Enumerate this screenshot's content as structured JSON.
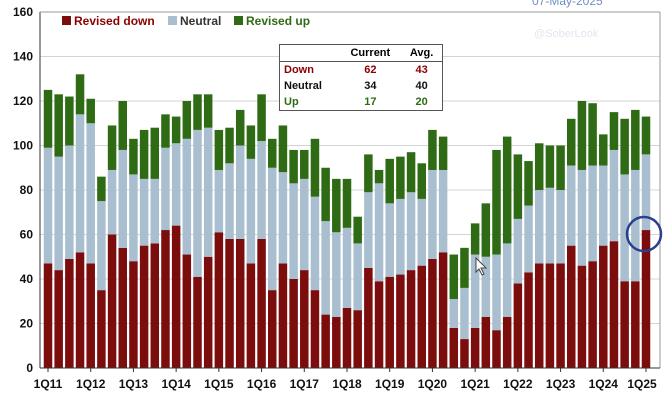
{
  "date_stamp": "07-May-2025",
  "watermark": "@SoberLook",
  "colors": {
    "down": "#7b0d0d",
    "neutral": "#a9bfd0",
    "up": "#2f6b14",
    "highlight_circle": "#2a3f8f"
  },
  "table": {
    "headers": [
      "",
      "Current",
      "Avg."
    ],
    "rows": [
      {
        "label": "Down",
        "current": "62",
        "avg": "43",
        "color": "#8b0000"
      },
      {
        "label": "Neutral",
        "current": "34",
        "avg": "40",
        "color": "#111111"
      },
      {
        "label": "Up",
        "current": "17",
        "avg": "20",
        "color": "#2f6b14"
      }
    ]
  },
  "chart_data": {
    "type": "bar",
    "stacked": true,
    "ylim": [
      0,
      160
    ],
    "yticks": [
      0,
      20,
      40,
      60,
      80,
      100,
      120,
      140,
      160
    ],
    "grid": true,
    "legend_placement": "top-left",
    "xtick_labels": [
      "1Q11",
      "1Q12",
      "1Q13",
      "1Q14",
      "1Q15",
      "1Q16",
      "1Q17",
      "1Q18",
      "1Q19",
      "1Q20",
      "1Q21",
      "1Q22",
      "1Q23",
      "1Q24",
      "1Q25"
    ],
    "categories": [
      "1Q11",
      "2Q11",
      "3Q11",
      "4Q11",
      "1Q12",
      "2Q12",
      "3Q12",
      "4Q12",
      "1Q13",
      "2Q13",
      "3Q13",
      "4Q13",
      "1Q14",
      "2Q14",
      "3Q14",
      "4Q14",
      "1Q15",
      "2Q15",
      "3Q15",
      "4Q15",
      "1Q16",
      "2Q16",
      "3Q16",
      "4Q16",
      "1Q17",
      "2Q17",
      "3Q17",
      "4Q17",
      "1Q18",
      "2Q18",
      "3Q18",
      "4Q18",
      "1Q19",
      "2Q19",
      "3Q19",
      "4Q19",
      "1Q20",
      "2Q20",
      "3Q20",
      "4Q20",
      "1Q21",
      "2Q21",
      "3Q21",
      "4Q21",
      "1Q22",
      "2Q22",
      "3Q22",
      "4Q22",
      "1Q23",
      "2Q23",
      "3Q23",
      "4Q23",
      "1Q24",
      "2Q24",
      "3Q24",
      "4Q24",
      "1Q25"
    ],
    "series": [
      {
        "name": "Revised down",
        "key": "down",
        "values": [
          47,
          44,
          49,
          52,
          47,
          35,
          60,
          54,
          48,
          55,
          56,
          62,
          64,
          51,
          41,
          50,
          61,
          58,
          58,
          47,
          58,
          35,
          47,
          40,
          44,
          35,
          24,
          23,
          27,
          26,
          45,
          39,
          41,
          42,
          44,
          46,
          49,
          52,
          18,
          13,
          18,
          23,
          17,
          23,
          38,
          43,
          47,
          47,
          47,
          55,
          46,
          48,
          55,
          57,
          39,
          39,
          62
        ]
      },
      {
        "name": "Neutral",
        "key": "neutral",
        "values": [
          52,
          51,
          51,
          62,
          63,
          40,
          29,
          44,
          39,
          30,
          29,
          37,
          37,
          52,
          66,
          58,
          28,
          34,
          42,
          47,
          44,
          55,
          41,
          43,
          41,
          42,
          42,
          38,
          36,
          30,
          34,
          44,
          33,
          34,
          35,
          30,
          40,
          37,
          13,
          23,
          33,
          27,
          34,
          33,
          29,
          30,
          33,
          34,
          33,
          36,
          43,
          43,
          36,
          41,
          48,
          50,
          34
        ]
      },
      {
        "name": "Revised up",
        "key": "up",
        "values": [
          26,
          28,
          22,
          18,
          11,
          11,
          20,
          22,
          16,
          22,
          23,
          15,
          12,
          17,
          16,
          15,
          18,
          16,
          16,
          15,
          21,
          13,
          21,
          15,
          13,
          26,
          24,
          24,
          22,
          12,
          17,
          6,
          20,
          19,
          18,
          16,
          18,
          15,
          20,
          18,
          14,
          24,
          47,
          48,
          29,
          20,
          21,
          19,
          20,
          21,
          31,
          28,
          14,
          17,
          25,
          27,
          17
        ]
      }
    ]
  }
}
